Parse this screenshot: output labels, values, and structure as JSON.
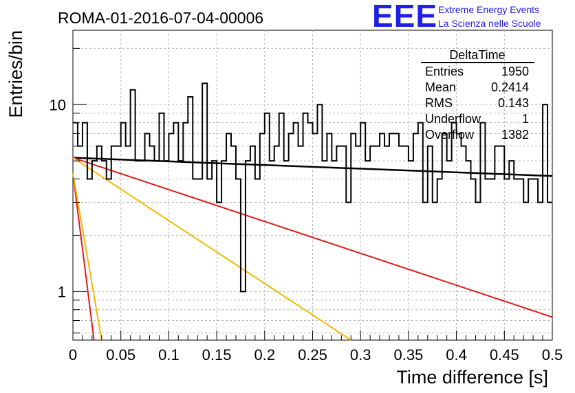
{
  "header": {
    "run_title": "ROMA-01-2016-07-04-00006",
    "logo": {
      "mark": "EEE",
      "line1": "Extreme Energy Events",
      "line2": "La Scienza nelle Scuole",
      "color": "#1f1fe6"
    }
  },
  "stats_box": {
    "title": "DeltaTime",
    "rows": [
      {
        "label": "Entries",
        "value": "1950"
      },
      {
        "label": "Mean",
        "value": "0.2414"
      },
      {
        "label": "RMS",
        "value": "0.143"
      },
      {
        "label": "Underflow",
        "value": "1"
      },
      {
        "label": "Overflow",
        "value": "1382"
      }
    ]
  },
  "chart_data": {
    "type": "line",
    "subtype": "histogram-step with exponential fit curves",
    "xlabel": "Time difference [s]",
    "ylabel": "Entries/bin",
    "xlim": [
      0,
      0.5
    ],
    "ylim": [
      0.55,
      25
    ],
    "y_scale": "log",
    "grid": true,
    "x_ticks": [
      "0",
      "0.05",
      "0.1",
      "0.15",
      "0.2",
      "0.25",
      "0.3",
      "0.35",
      "0.4",
      "0.45",
      "0.5"
    ],
    "y_ticks": [
      "1",
      "10"
    ],
    "histogram": {
      "bin_width": 0.005,
      "values": [
        8,
        6,
        8,
        4,
        5,
        6,
        5,
        4,
        6,
        6,
        8,
        6,
        12,
        5,
        5,
        7,
        6,
        5,
        9,
        5,
        7,
        8,
        5,
        8,
        11,
        4,
        4,
        13,
        4,
        5,
        3,
        5,
        7,
        6,
        4,
        1,
        5,
        6,
        4,
        7,
        9,
        5,
        6,
        9,
        5,
        7,
        8,
        6,
        9,
        8,
        7,
        10,
        5,
        7,
        5,
        6,
        6,
        3,
        7,
        6,
        8,
        5,
        6,
        6,
        7,
        6,
        7,
        7,
        6,
        6,
        5,
        7,
        8,
        3,
        6,
        3,
        4,
        7,
        5,
        8,
        7,
        6,
        5,
        4,
        3,
        8,
        4,
        4,
        6,
        6,
        4,
        5,
        4,
        4,
        3,
        4,
        4,
        3,
        10,
        3
      ]
    },
    "fit_curves": [
      {
        "color": "#000000",
        "points": [
          [
            0,
            5.2
          ],
          [
            0.5,
            4.15
          ]
        ]
      },
      {
        "color": "#e01a1a",
        "points": [
          [
            0,
            5.2
          ],
          [
            0.5,
            0.73
          ]
        ]
      },
      {
        "color": "#f5b800",
        "points": [
          [
            0,
            5.2
          ],
          [
            0.29,
            0.55
          ]
        ]
      },
      {
        "color": "#e01a1a",
        "points": [
          [
            0,
            4.3
          ],
          [
            0.022,
            0.55
          ]
        ]
      },
      {
        "color": "#f5b800",
        "points": [
          [
            0,
            4.3
          ],
          [
            0.03,
            0.55
          ]
        ]
      }
    ]
  }
}
